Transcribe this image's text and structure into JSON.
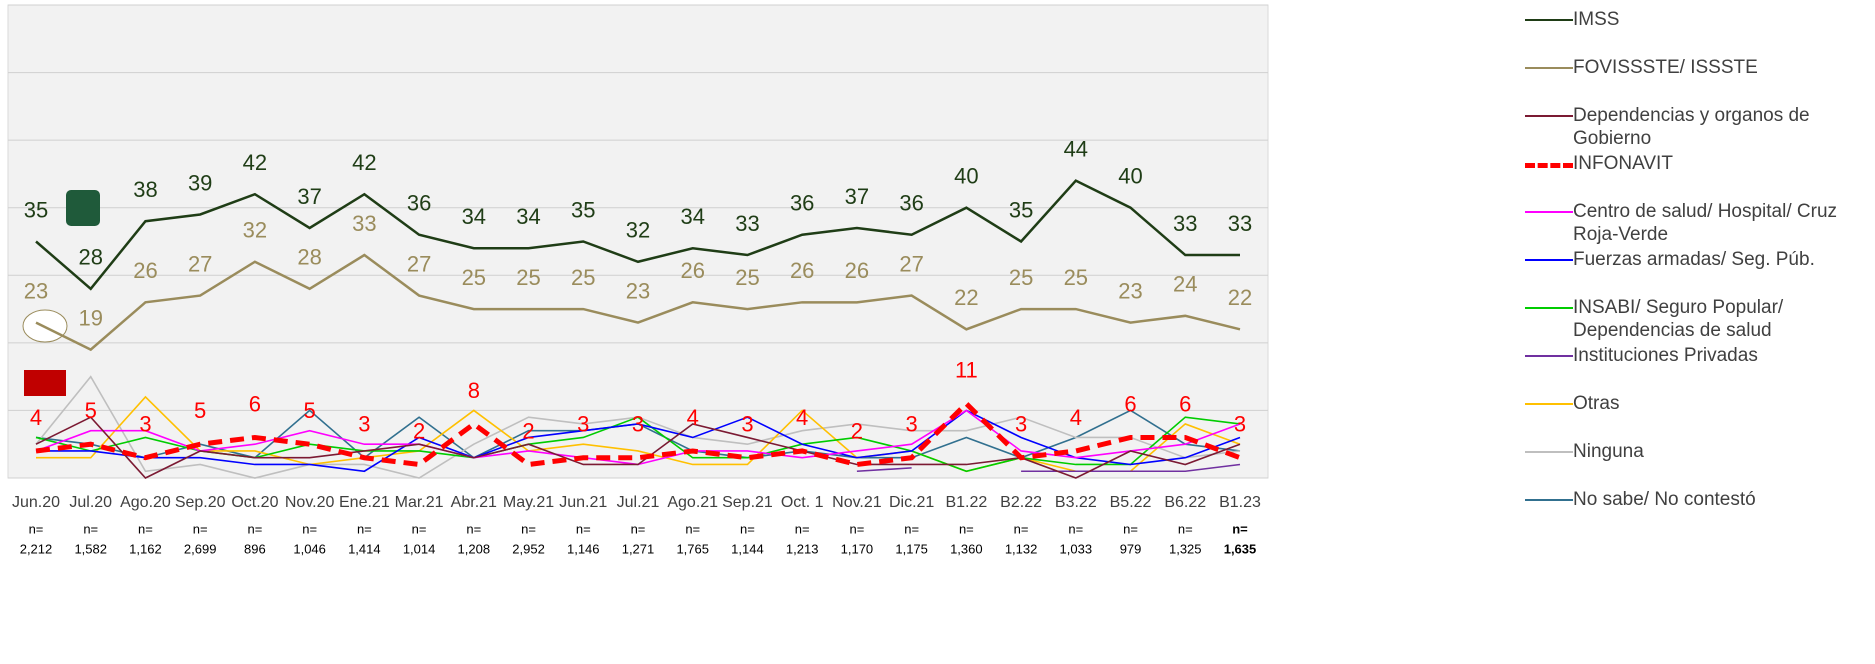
{
  "chart_data": {
    "type": "line",
    "categories": [
      "Jun.20",
      "Jul.20",
      "Ago.20",
      "Sep.20",
      "Oct.20",
      "Nov.20",
      "Ene.21",
      "Mar.21",
      "Abr.21",
      "May.21",
      "Jun.21",
      "Jul.21",
      "Ago.21",
      "Sep.21",
      "Oct. 1",
      "Nov.21",
      "Dic.21",
      "B1.22",
      "B2.22",
      "B3.22",
      "B5.22",
      "B6.22",
      "B1.23"
    ],
    "n_prefix": "n=",
    "sample_sizes": [
      "2,212",
      "1,582",
      "1,162",
      "2,699",
      "896",
      "1,046",
      "1,414",
      "1,014",
      "1,208",
      "2,952",
      "1,146",
      "1,271",
      "1,765",
      "1,144",
      "1,213",
      "1,170",
      "1,175",
      "1,360",
      "1,132",
      "1,033",
      "979",
      "1,325",
      "1,635"
    ],
    "ylim": [
      0,
      70
    ],
    "yticks": [
      0,
      10,
      20,
      30,
      40,
      50,
      60,
      70
    ],
    "grid": true,
    "series": [
      {
        "name": "IMSS",
        "color": "#1f3d16",
        "labels": true,
        "values": [
          35,
          28,
          38,
          39,
          42,
          37,
          42,
          36,
          34,
          34,
          35,
          32,
          34,
          33,
          36,
          37,
          36,
          40,
          35,
          44,
          40,
          33,
          33
        ]
      },
      {
        "name": "FOVISSSTE/ ISSSTE",
        "color": "#9a8c5c",
        "labels": true,
        "values": [
          23,
          19,
          26,
          27,
          32,
          28,
          33,
          27,
          25,
          25,
          25,
          23,
          26,
          25,
          26,
          26,
          27,
          22,
          25,
          25,
          23,
          24,
          22
        ]
      },
      {
        "name": "Dependencias y organos de Gobierno",
        "color": "#7b1a33",
        "values": [
          5,
          9,
          0,
          4,
          3,
          3,
          4,
          5,
          3,
          5,
          2,
          2,
          8,
          6,
          4,
          2,
          2,
          2,
          3,
          0,
          4,
          2,
          5
        ]
      },
      {
        "name": "INFONAVIT",
        "color": "#ff0000",
        "dashed": true,
        "labels": true,
        "values": [
          4,
          5,
          3,
          5,
          6,
          5,
          3,
          2,
          8,
          2,
          3,
          3,
          4,
          3,
          4,
          2,
          3,
          11,
          3,
          4,
          6,
          6,
          3
        ]
      },
      {
        "name": "Centro de salud/ Hospital/ Cruz Roja-Verde",
        "color": "#ff00ff",
        "values": [
          4,
          7,
          7,
          4,
          5,
          7,
          5,
          5,
          3,
          4,
          3,
          2,
          4,
          4,
          3,
          4,
          5,
          10,
          4,
          3,
          4,
          5,
          8
        ]
      },
      {
        "name": "Fuerzas armadas/ Seg. Púb.",
        "color": "#0000ff",
        "values": [
          4,
          4,
          3,
          3,
          2,
          2,
          1,
          6,
          3,
          6,
          7,
          8,
          6,
          9,
          5,
          3,
          4,
          10,
          6,
          3,
          2,
          3,
          6
        ]
      },
      {
        "name": "INSABI/ Seguro Popular/ Dependencias de salud",
        "color": "#00cc00",
        "values": [
          6,
          4,
          6,
          4,
          3,
          5,
          4,
          4,
          3,
          5,
          6,
          9,
          3,
          3,
          5,
          6,
          4,
          1,
          3,
          2,
          2,
          9,
          8
        ]
      },
      {
        "name": "Instituciones Privadas",
        "color": "#7030a0",
        "values": [
          null,
          null,
          null,
          null,
          null,
          null,
          null,
          null,
          null,
          null,
          null,
          null,
          null,
          null,
          null,
          1,
          1.5,
          null,
          1,
          1,
          1,
          1,
          2
        ]
      },
      {
        "name": "Otras",
        "color": "#ffc000",
        "values": [
          3,
          3,
          12,
          4,
          4,
          2,
          3,
          4,
          10,
          4,
          5,
          4,
          2,
          2,
          10,
          3,
          4,
          1,
          3,
          1,
          1,
          8,
          5
        ]
      },
      {
        "name": "Ninguna",
        "color": "#bfbfbf",
        "values": [
          5,
          15,
          1,
          2,
          0,
          2,
          2,
          0,
          5,
          9,
          8,
          9,
          6,
          5,
          7,
          8,
          7,
          7,
          9,
          6,
          6,
          3,
          4
        ]
      },
      {
        "name": "No sabe/ No contestó",
        "color": "#31708f",
        "values": [
          6,
          5,
          3,
          5,
          3,
          10,
          3,
          9,
          3,
          7,
          7,
          8,
          4,
          3,
          4,
          3,
          3,
          6,
          3,
          6,
          10,
          5,
          4
        ]
      }
    ]
  }
}
